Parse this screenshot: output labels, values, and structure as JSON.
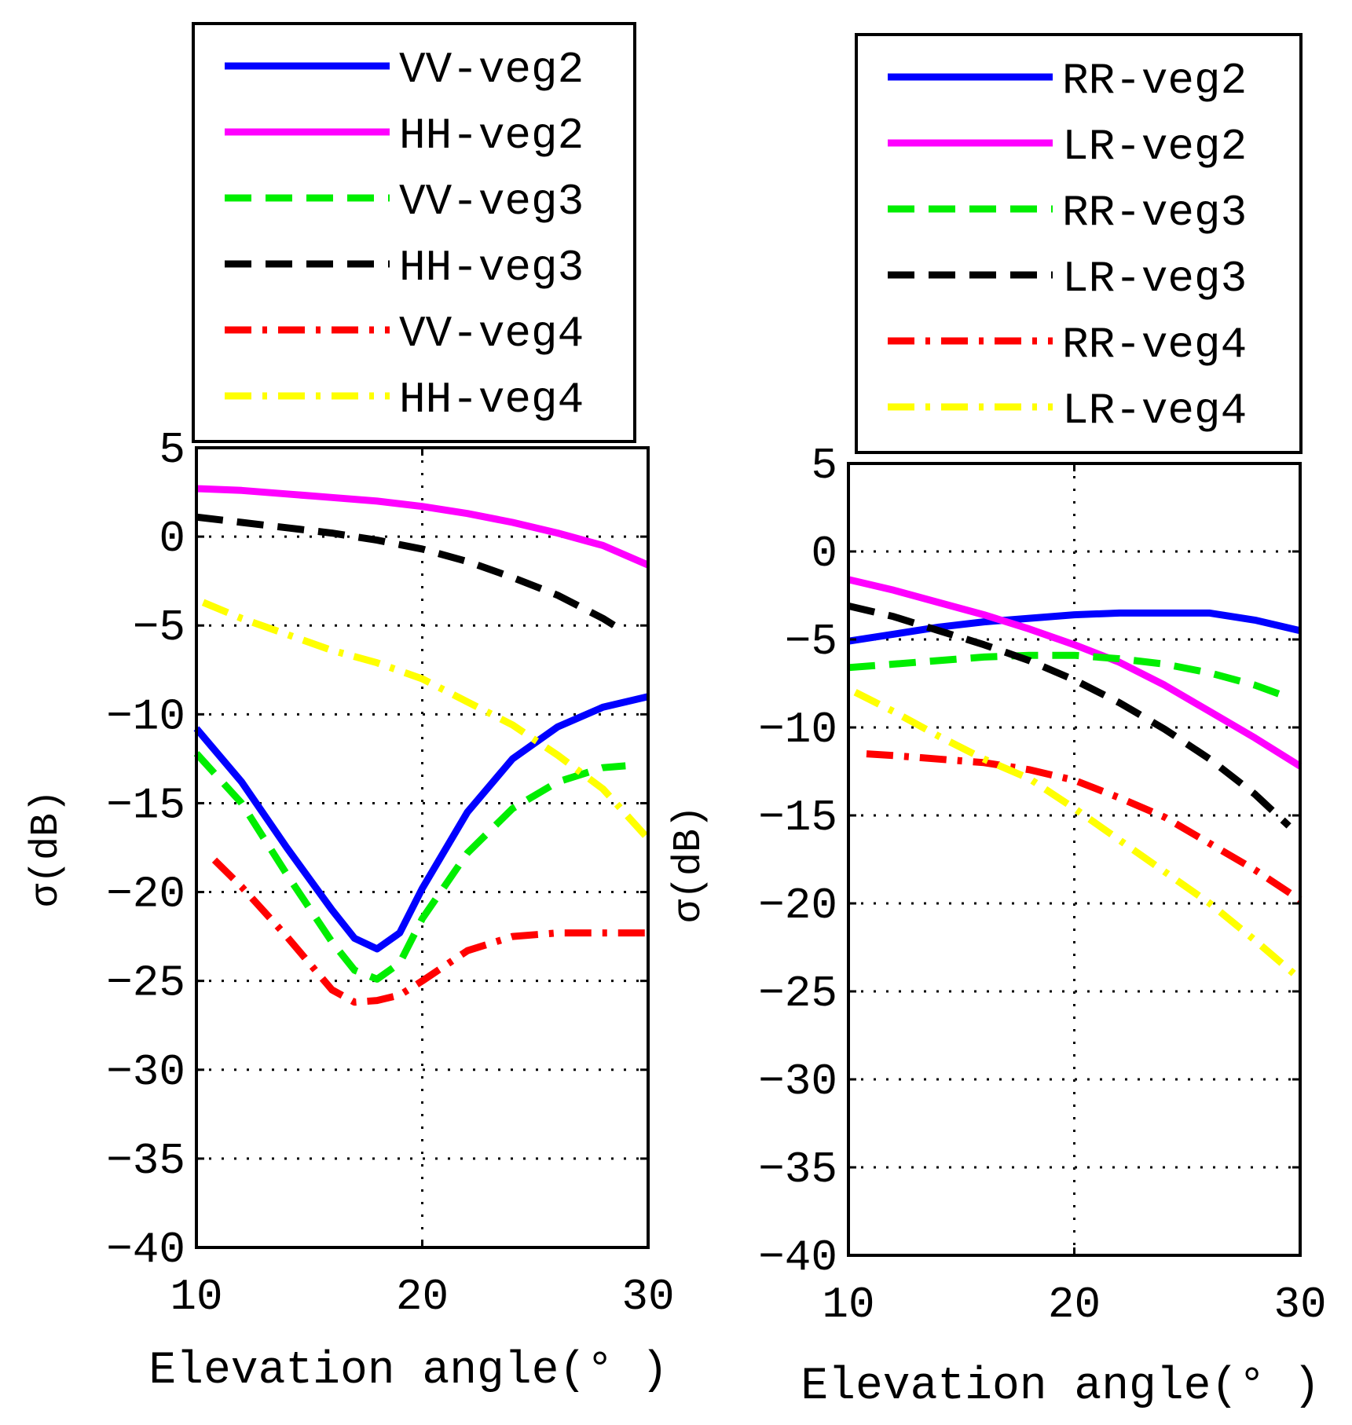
{
  "chart_data": [
    {
      "type": "line",
      "xlabel": "Elevation angle(° )",
      "ylabel": "σ(dB)",
      "xlim": [
        10,
        30
      ],
      "ylim": [
        -40,
        5
      ],
      "xticks": [
        10,
        20,
        30
      ],
      "yticks": [
        5,
        0,
        -5,
        -10,
        -15,
        -20,
        -25,
        -30,
        -35,
        -40
      ],
      "grid": true,
      "legend_position": "above",
      "series": [
        {
          "name": "VV-veg2",
          "color": "#0000ff",
          "style": "solid",
          "x": [
            10,
            12,
            14,
            16,
            17,
            18,
            19,
            20,
            22,
            24,
            26,
            28,
            30
          ],
          "y": [
            -10.8,
            -13.8,
            -17.5,
            -21.0,
            -22.6,
            -23.2,
            -22.3,
            -19.8,
            -15.5,
            -12.5,
            -10.7,
            -9.6,
            -9.0
          ]
        },
        {
          "name": "HH-veg2",
          "color": "#ff00ff",
          "style": "solid",
          "x": [
            10,
            12,
            14,
            16,
            18,
            20,
            22,
            24,
            26,
            28,
            30
          ],
          "y": [
            2.7,
            2.6,
            2.4,
            2.2,
            2.0,
            1.7,
            1.3,
            0.8,
            0.2,
            -0.5,
            -1.6
          ]
        },
        {
          "name": "VV-veg3",
          "color": "#00ee00",
          "style": "dash",
          "x": [
            10,
            12,
            14,
            16,
            17,
            18,
            19,
            20,
            22,
            24,
            26,
            28,
            29
          ],
          "y": [
            -12.2,
            -15.0,
            -19.0,
            -22.8,
            -24.4,
            -24.9,
            -24.0,
            -21.5,
            -17.8,
            -15.3,
            -13.8,
            -13.0,
            -12.9
          ]
        },
        {
          "name": "HH-veg3",
          "color": "#000000",
          "style": "dash",
          "x": [
            10,
            12,
            14,
            16,
            18,
            20,
            22,
            24,
            26,
            28,
            29
          ],
          "y": [
            1.1,
            0.8,
            0.5,
            0.2,
            -0.2,
            -0.7,
            -1.4,
            -2.3,
            -3.3,
            -4.6,
            -5.4
          ]
        },
        {
          "name": "VV-veg4",
          "color": "#ff0000",
          "style": "dashdot",
          "x": [
            10.8,
            12,
            14,
            16,
            17,
            18,
            19,
            20,
            22,
            24,
            26,
            28,
            30
          ],
          "y": [
            -18.2,
            -19.7,
            -22.5,
            -25.5,
            -26.2,
            -26.1,
            -25.8,
            -25.0,
            -23.3,
            -22.5,
            -22.3,
            -22.3,
            -22.3
          ]
        },
        {
          "name": "HH-veg4",
          "color": "#ffff00",
          "style": "dashdot",
          "x": [
            10.3,
            12,
            14,
            16,
            18,
            20,
            22,
            24,
            26,
            28,
            30
          ],
          "y": [
            -3.7,
            -4.6,
            -5.5,
            -6.4,
            -7.1,
            -8.0,
            -9.3,
            -10.6,
            -12.3,
            -14.2,
            -17.0
          ]
        }
      ]
    },
    {
      "type": "line",
      "xlabel": "Elevation angle(° )",
      "ylabel": "σ(dB)",
      "xlim": [
        10,
        30
      ],
      "ylim": [
        -40,
        5
      ],
      "xticks": [
        10,
        20,
        30
      ],
      "yticks": [
        5,
        0,
        -5,
        -10,
        -15,
        -20,
        -25,
        -30,
        -35,
        -40
      ],
      "grid": true,
      "legend_position": "above",
      "series": [
        {
          "name": "RR-veg2",
          "color": "#0000ff",
          "style": "solid",
          "x": [
            10,
            12,
            14,
            16,
            18,
            20,
            22,
            24,
            26,
            28,
            30
          ],
          "y": [
            -5.1,
            -4.7,
            -4.3,
            -4.0,
            -3.8,
            -3.6,
            -3.5,
            -3.5,
            -3.5,
            -3.9,
            -4.5
          ]
        },
        {
          "name": "LR-veg2",
          "color": "#ff00ff",
          "style": "solid",
          "x": [
            10,
            12,
            14,
            16,
            18,
            20,
            22,
            24,
            26,
            28,
            30
          ],
          "y": [
            -1.6,
            -2.2,
            -2.9,
            -3.6,
            -4.4,
            -5.3,
            -6.3,
            -7.6,
            -9.1,
            -10.6,
            -12.2
          ]
        },
        {
          "name": "RR-veg3",
          "color": "#00ee00",
          "style": "dash",
          "x": [
            10,
            12,
            14,
            16,
            18,
            20,
            22,
            24,
            26,
            28,
            29.5
          ],
          "y": [
            -6.6,
            -6.4,
            -6.2,
            -6.0,
            -5.9,
            -5.9,
            -6.1,
            -6.4,
            -6.9,
            -7.6,
            -8.3
          ]
        },
        {
          "name": "LR-veg3",
          "color": "#000000",
          "style": "dash",
          "x": [
            10,
            12,
            14,
            16,
            18,
            20,
            22,
            24,
            26,
            28,
            29.5
          ],
          "y": [
            -3.1,
            -3.7,
            -4.5,
            -5.3,
            -6.2,
            -7.3,
            -8.6,
            -10.1,
            -11.8,
            -13.8,
            -15.6
          ]
        },
        {
          "name": "RR-veg4",
          "color": "#ff0000",
          "style": "dashdot",
          "x": [
            10.8,
            12,
            14,
            16,
            18,
            20,
            22,
            24,
            26,
            28,
            30
          ],
          "y": [
            -11.5,
            -11.6,
            -11.8,
            -12.0,
            -12.4,
            -13.0,
            -14.0,
            -15.1,
            -16.6,
            -18.1,
            -19.8
          ]
        },
        {
          "name": "LR-veg4",
          "color": "#ffff00",
          "style": "dashdot",
          "x": [
            10.3,
            12,
            14,
            16,
            18,
            20,
            22,
            24,
            26,
            28,
            30
          ],
          "y": [
            -8.0,
            -9.1,
            -10.5,
            -11.8,
            -12.9,
            -14.6,
            -16.4,
            -18.2,
            -20.0,
            -22.1,
            -24.3
          ]
        }
      ]
    }
  ]
}
